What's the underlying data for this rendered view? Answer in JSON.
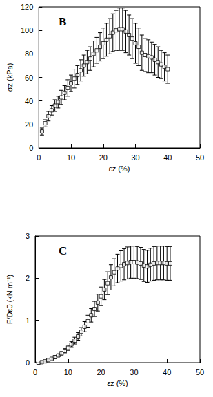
{
  "chart_data": [
    {
      "type": "scatter",
      "title": "B",
      "x_label": "εz (%)",
      "y_label": "σz (kPa)",
      "x": [
        1,
        2,
        3,
        4,
        5,
        6,
        7,
        8,
        9,
        10,
        11,
        12,
        13,
        14,
        15,
        16,
        17,
        18,
        19,
        20,
        21,
        22,
        23,
        24,
        25,
        26,
        27,
        28,
        29,
        30,
        31,
        32,
        33,
        34,
        35,
        36,
        37,
        38,
        39,
        40
      ],
      "values": [
        14,
        21,
        27,
        32,
        36,
        39,
        43,
        47,
        51,
        55,
        59,
        62,
        66,
        70,
        73,
        76,
        80,
        83,
        86,
        89,
        92,
        95,
        98,
        100,
        101,
        101,
        99,
        96,
        93,
        89,
        86,
        81,
        79,
        78,
        77,
        75,
        73,
        71,
        69,
        67
      ],
      "errors": [
        3,
        3,
        4,
        4,
        5,
        5,
        6,
        6,
        7,
        7,
        8,
        8,
        9,
        9,
        10,
        10,
        11,
        11,
        12,
        13,
        14,
        15,
        16,
        17,
        18,
        18,
        18,
        17,
        17,
        17,
        16,
        15,
        14,
        14,
        13,
        13,
        13,
        12,
        12,
        12
      ],
      "xlim": [
        0,
        50
      ],
      "xticks": [
        0,
        10,
        20,
        30,
        40,
        50
      ],
      "ylim": [
        0,
        120
      ],
      "yticks": [
        0,
        20,
        40,
        60,
        80,
        100,
        120
      ],
      "marker": "square",
      "color": "#000000"
    },
    {
      "type": "scatter",
      "title": "C",
      "x_label": "εz (%)",
      "y_label": "F/Dε0 (kN m⁻¹)",
      "x": [
        1,
        2,
        3,
        4,
        5,
        6,
        7,
        8,
        9,
        10,
        11,
        12,
        13,
        14,
        15,
        16,
        17,
        18,
        19,
        20,
        21,
        22,
        23,
        24,
        25,
        26,
        27,
        28,
        29,
        30,
        31,
        32,
        33,
        34,
        35,
        36,
        37,
        38,
        39,
        40,
        41
      ],
      "values": [
        0.0,
        0.01,
        0.03,
        0.06,
        0.09,
        0.13,
        0.17,
        0.22,
        0.28,
        0.35,
        0.43,
        0.52,
        0.62,
        0.73,
        0.85,
        0.98,
        1.12,
        1.27,
        1.42,
        1.57,
        1.73,
        1.88,
        2.02,
        2.14,
        2.23,
        2.29,
        2.33,
        2.36,
        2.38,
        2.38,
        2.37,
        2.35,
        2.3,
        2.28,
        2.32,
        2.35,
        2.36,
        2.36,
        2.36,
        2.35,
        2.35
      ],
      "errors": [
        0.0,
        0.01,
        0.01,
        0.02,
        0.02,
        0.03,
        0.03,
        0.04,
        0.05,
        0.06,
        0.07,
        0.08,
        0.09,
        0.1,
        0.12,
        0.14,
        0.16,
        0.18,
        0.2,
        0.22,
        0.24,
        0.27,
        0.3,
        0.32,
        0.34,
        0.36,
        0.37,
        0.38,
        0.38,
        0.38,
        0.38,
        0.38,
        0.38,
        0.38,
        0.39,
        0.4,
        0.4,
        0.4,
        0.4,
        0.4,
        0.4
      ],
      "xlim": [
        0,
        50
      ],
      "xticks": [
        0,
        10,
        20,
        30,
        40,
        50
      ],
      "ylim": [
        0,
        3
      ],
      "yticks": [
        0,
        1,
        2,
        3
      ],
      "marker": "square",
      "color": "#000000"
    }
  ]
}
